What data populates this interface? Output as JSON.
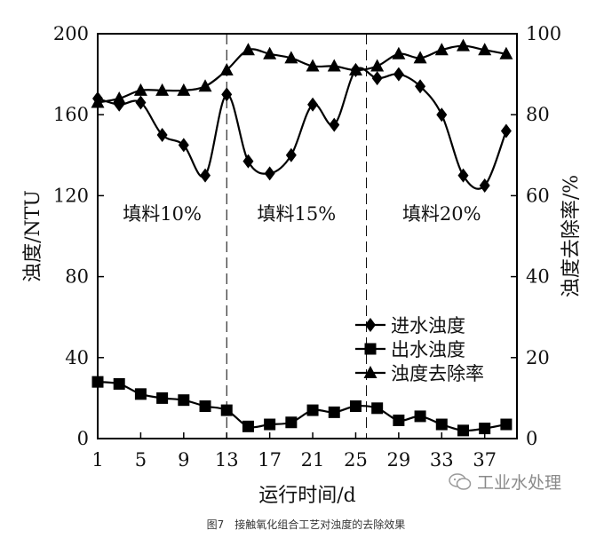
{
  "chart_data": {
    "type": "line",
    "xlabel": "运行时间/d",
    "ylabel": "浊度/NTU",
    "y2label": "浊度去除率/%",
    "xlim": [
      1,
      40
    ],
    "ylim": [
      0,
      200
    ],
    "y2lim": [
      0,
      100
    ],
    "xticks": [
      1,
      5,
      9,
      13,
      17,
      21,
      25,
      29,
      33,
      37
    ],
    "yticks": [
      0,
      40,
      80,
      120,
      160,
      200
    ],
    "y2ticks": [
      0,
      20,
      40,
      60,
      80,
      100
    ],
    "phase_dividers": [
      13,
      26
    ],
    "phase_labels": [
      {
        "text": "填料10%",
        "x": 7,
        "y": 108
      },
      {
        "text": "填料15%",
        "x": 19.5,
        "y": 108
      },
      {
        "text": "填料20%",
        "x": 33,
        "y": 108
      }
    ],
    "legend_position": "center-right",
    "series": [
      {
        "name": "进水浊度",
        "axis": "left",
        "marker": "diamond",
        "x": [
          1,
          3,
          5,
          7,
          9,
          11,
          13,
          15,
          17,
          19,
          21,
          23,
          25,
          27,
          29,
          31,
          33,
          35,
          37,
          39
        ],
        "values": [
          168,
          165,
          166,
          150,
          145,
          130,
          170,
          137,
          131,
          140,
          165,
          155,
          182,
          178,
          180,
          174,
          160,
          130,
          125,
          152
        ]
      },
      {
        "name": "出水浊度",
        "axis": "left",
        "marker": "square",
        "x": [
          1,
          3,
          5,
          7,
          9,
          11,
          13,
          15,
          17,
          19,
          21,
          23,
          25,
          27,
          29,
          31,
          33,
          35,
          37,
          39
        ],
        "values": [
          28,
          27,
          22,
          20,
          19,
          16,
          14,
          6,
          7,
          8,
          14,
          13,
          16,
          15,
          9,
          11,
          7,
          4,
          5,
          7
        ]
      },
      {
        "name": "浊度去除率",
        "axis": "right",
        "marker": "triangle",
        "x": [
          1,
          3,
          5,
          7,
          9,
          11,
          13,
          15,
          17,
          19,
          21,
          23,
          25,
          27,
          29,
          31,
          33,
          35,
          37,
          39
        ],
        "values": [
          83,
          84,
          86,
          86,
          86,
          87,
          91,
          96,
          95,
          94,
          92,
          92,
          91,
          92,
          95,
          94,
          96,
          97,
          96,
          95
        ]
      }
    ]
  },
  "caption": "图7　接触氧化组合工艺对浊度的去除效果",
  "watermark": "工业水处理"
}
